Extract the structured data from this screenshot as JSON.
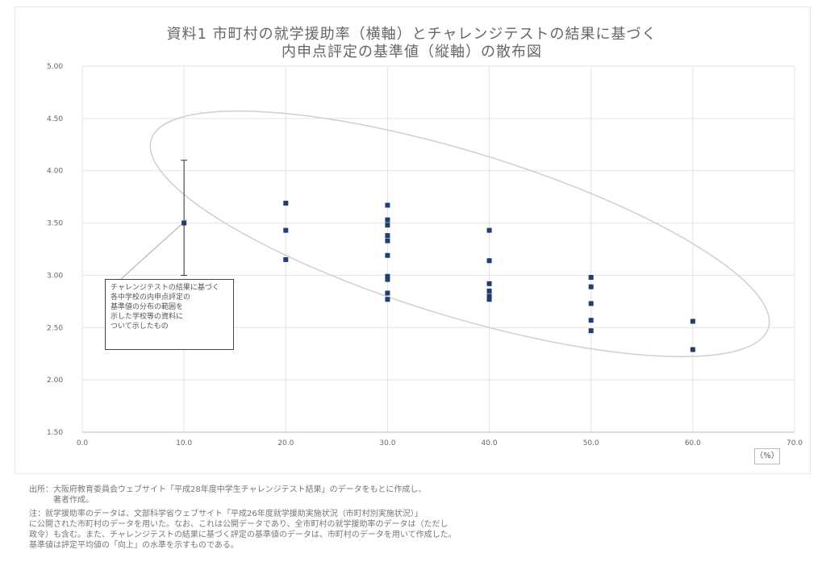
{
  "chart_data": {
    "type": "scatter",
    "title_line1": "資料1 市町村の就学援助率（横軸）とチャレンジテストの結果に基づく",
    "title_line2": "内申点評定の基準値（縦軸）の散布図",
    "x_ticks": [
      "0.0",
      "10.0",
      "20.0",
      "30.0",
      "40.0",
      "50.0",
      "60.0",
      "70.0"
    ],
    "y_ticks": [
      "5.00",
      "4.50",
      "4.00",
      "3.50",
      "3.00",
      "2.50",
      "2.00",
      "1.50"
    ],
    "x_unit": "（%）",
    "xlim": [
      0,
      70
    ],
    "ylim": [
      1.5,
      5.0
    ],
    "grid": true,
    "series": [
      {
        "color": "#1f3f6e",
        "points": [
          [
            10,
            3.5
          ],
          [
            20,
            3.69
          ],
          [
            20,
            3.43
          ],
          [
            20,
            3.15
          ],
          [
            30,
            3.67
          ],
          [
            30,
            3.53
          ],
          [
            30,
            3.48
          ],
          [
            30,
            3.38
          ],
          [
            30,
            3.33
          ],
          [
            30,
            3.19
          ],
          [
            30,
            2.99
          ],
          [
            30,
            2.96
          ],
          [
            30,
            2.83
          ],
          [
            30,
            2.77
          ],
          [
            40,
            3.43
          ],
          [
            40,
            3.14
          ],
          [
            40,
            2.92
          ],
          [
            40,
            2.85
          ],
          [
            40,
            2.8
          ],
          [
            40,
            2.77
          ],
          [
            50,
            2.98
          ],
          [
            50,
            2.89
          ],
          [
            50,
            2.73
          ],
          [
            50,
            2.57
          ],
          [
            50,
            2.47
          ],
          [
            60,
            2.56
          ],
          [
            60,
            2.29
          ]
        ]
      }
    ],
    "error_bar": {
      "x": 10,
      "y_low": 3.0,
      "y_high": 4.1
    },
    "callout": "チャレンジテストの結果に基づく\n各中学校の内申点評定の\n基準値の分布の範囲を\n示した学校等の資料に\nついて示したもの",
    "notes": [
      "出所：大阪府教育委員会ウェブサイト「平成28年度中学生チャレンジテスト結果」のデータをもとに作成し、",
      "　　　著者作成。",
      "注：就学援助率のデータは、文部科学省ウェブサイト「平成26年度就学援助実施状況（市町村別実施状況）」",
      "に公開された市町村のデータを用いた。なお、これは公開データであり、全市町村の就学援助率のデータは（ただし",
      "政令）も含む。また、チャレンジテストの結果に基づく評定の基準値のデータは、市町村のデータを用いて作成した。",
      "基準値は評定平均値の「向上」の水準を示すものである。"
    ]
  }
}
